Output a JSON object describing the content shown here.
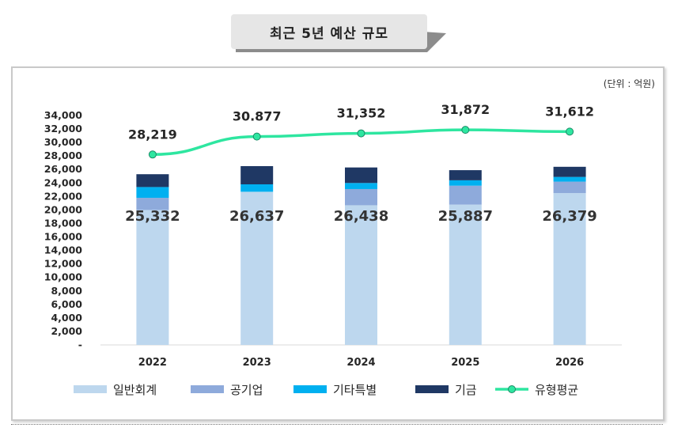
{
  "title": "최근 5년 예산 규모",
  "unit_label": "(단위 : 억원)",
  "chart_data": {
    "type": "bar",
    "stacked": true,
    "categories": [
      "2022",
      "2023",
      "2024",
      "2025",
      "2026"
    ],
    "ylim": [
      0,
      34000
    ],
    "y_ticks": [
      "-",
      "2,000",
      "4,000",
      "6,000",
      "8,000",
      "10,000",
      "12,000",
      "14,000",
      "16,000",
      "18,000",
      "20,000",
      "22,000",
      "24,000",
      "26,000",
      "28,000",
      "30,000",
      "32,000",
      "34,000"
    ],
    "grid": false,
    "legend_position": "bottom",
    "series": [
      {
        "name": "일반회계",
        "color": "#bdd7ee",
        "values": [
          20000,
          22700,
          20700,
          20800,
          22500
        ]
      },
      {
        "name": "공기업",
        "color": "#8eaadb",
        "values": [
          1800,
          0,
          2400,
          2800,
          1700
        ]
      },
      {
        "name": "기타특별",
        "color": "#00b0f0",
        "values": [
          1600,
          1100,
          900,
          800,
          700
        ]
      },
      {
        "name": "기금",
        "color": "#1f3864",
        "values": [
          1900,
          2700,
          2300,
          1500,
          1500
        ]
      }
    ],
    "bar_labels": [
      "25,332",
      "26,637",
      "26,438",
      "25,887",
      "26,379"
    ],
    "line_series": {
      "name": "유형평균",
      "color": "#2ee6a0",
      "values": [
        28219,
        30877,
        31352,
        31872,
        31612
      ],
      "labels": [
        "28,219",
        "30.877",
        "31,352",
        "31,872",
        "31,612"
      ]
    }
  }
}
